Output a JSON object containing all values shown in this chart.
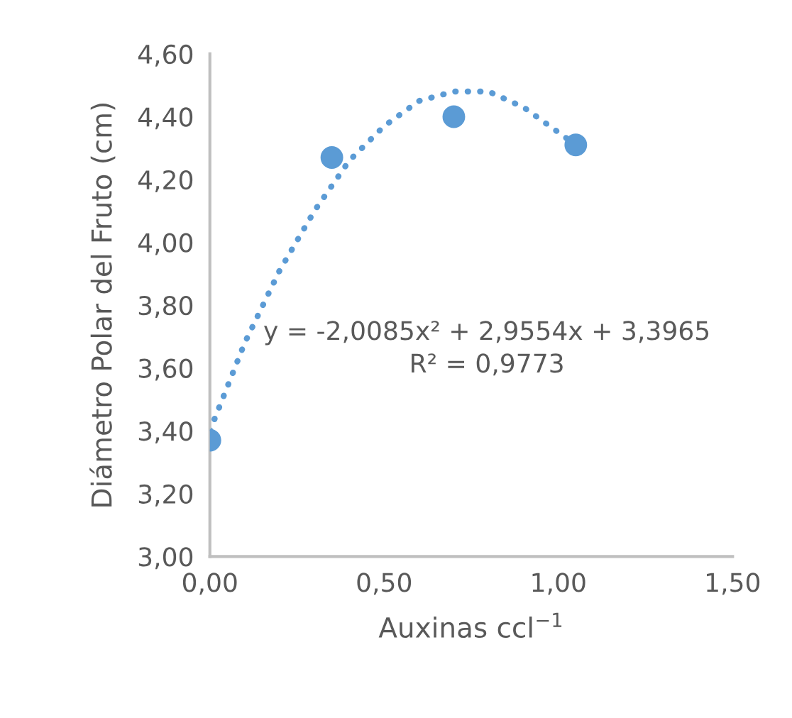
{
  "chart_data": {
    "type": "scatter",
    "xlabel": "Auxinas ccl$^{−1}$",
    "ylabel": "Diámetro Polar del Fruto (cm)",
    "xlim": [
      0,
      1.5
    ],
    "xticks": [
      {
        "value": 0,
        "label": "0,00"
      },
      {
        "value": 0.5,
        "label": "0,50"
      },
      {
        "value": 1,
        "label": "1,00"
      },
      {
        "value": 1.5,
        "label": "1,50"
      }
    ],
    "ylim": [
      3,
      4.6
    ],
    "yticks": [
      {
        "value": 3,
        "label": "3,00"
      },
      {
        "value": 3.2,
        "label": "3,20"
      },
      {
        "value": 3.4,
        "label": "3,40"
      },
      {
        "value": 3.6,
        "label": "3,60"
      },
      {
        "value": 3.8,
        "label": "3,80"
      },
      {
        "value": 4,
        "label": "4,00"
      },
      {
        "value": 4.2,
        "label": "4,20"
      },
      {
        "value": 4.4,
        "label": "4,40"
      },
      {
        "value": 4.6,
        "label": "4,60"
      }
    ],
    "grid": false,
    "legend": false,
    "marker": "circle",
    "series": [
      {
        "color": "#5b9bd5",
        "x": [
          0,
          0.35,
          0.7,
          1.05
        ],
        "values": [
          3.37,
          4.27,
          4.4,
          4.31
        ]
      },
      {
        "type": "line",
        "line_style": "dotted",
        "marker": "none",
        "color": "#5b9bd5",
        "x": [
          0,
          0.1,
          0.2,
          0.3,
          0.4,
          0.5,
          0.6,
          0.7,
          0.8,
          0.9,
          1.0,
          1.05
        ],
        "values": [
          3.4,
          3.68,
          3.91,
          4.1,
          4.26,
          4.37,
          4.45,
          4.48,
          4.48,
          4.43,
          4.35,
          4.31
        ]
      }
    ],
    "annotations": [
      "y = -2,0085x² + 2,9554x + 3,3965",
      "R² = 0,9773"
    ]
  }
}
